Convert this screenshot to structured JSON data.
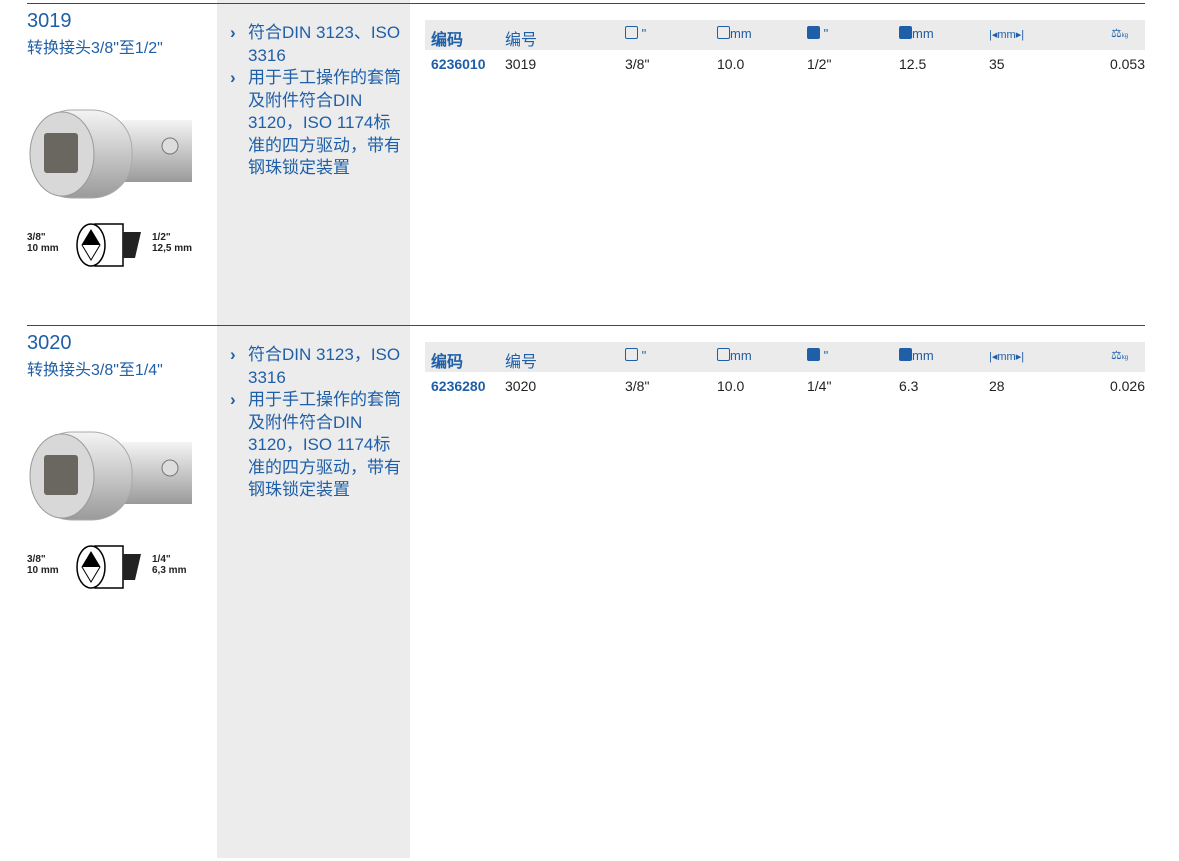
{
  "table_header": {
    "code": "编码",
    "number": "编号",
    "sq_in": "\"",
    "sq_mm": "mm",
    "drive_in": "\"",
    "drive_mm": "mm",
    "length": "mm",
    "weight": "kg"
  },
  "products": [
    {
      "number": "3019",
      "title": "转换接头3/8\"至1/2\"",
      "features": [
        "符合DIN 3123、ISO 3316",
        "用于手工操作的套筒及附件符合DIN 3120，ISO 1174标准的四方驱动，带有钢珠锁定装置"
      ],
      "diagram": {
        "left_size": "3/8\"",
        "left_mm": "10 mm",
        "right_size": "1/2\"",
        "right_mm": "12,5 mm"
      },
      "row": {
        "code": "6236010",
        "number": "3019",
        "sq_in": "3/8\"",
        "sq_mm": "10.0",
        "drive_in": "1/2\"",
        "drive_mm": "12.5",
        "length": "35",
        "weight": "0.053"
      }
    },
    {
      "number": "3020",
      "title": "转换接头3/8\"至1/4\"",
      "features": [
        "符合DIN 3123，ISO 3316",
        "用于手工操作的套筒及附件符合DIN 3120，ISO 1174标准的四方驱动，带有钢珠锁定装置"
      ],
      "diagram": {
        "left_size": "3/8\"",
        "left_mm": "10 mm",
        "right_size": "1/4\"",
        "right_mm": "6,3 mm"
      },
      "row": {
        "code": "6236280",
        "number": "3020",
        "sq_in": "3/8\"",
        "sq_mm": "10.0",
        "drive_in": "1/4\"",
        "drive_mm": "6.3",
        "length": "28",
        "weight": "0.026"
      }
    }
  ],
  "colors": {
    "brand": "#1f5fa8",
    "band": "#ebebeb"
  }
}
